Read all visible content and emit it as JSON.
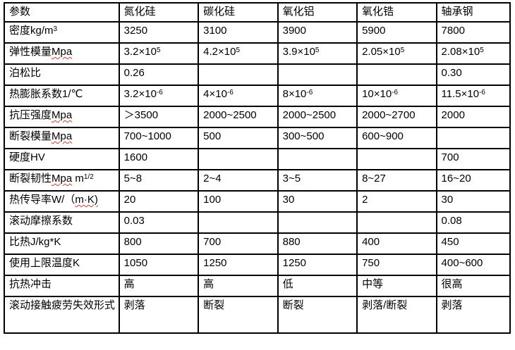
{
  "colors": {
    "background": "#ffffff",
    "text": "#000000",
    "border": "#000000",
    "spellcheck_squiggle": "#e0392e"
  },
  "chart_data": {
    "type": "table",
    "title": "",
    "columns": [
      "参数",
      "氮化硅",
      "碳化硅",
      "氧化铝",
      "氧化锆",
      "轴承钢"
    ],
    "rows": [
      [
        "密度kg/m³",
        "3250",
        "3100",
        "3900",
        "5900",
        "7800"
      ],
      [
        "弹性模量Mpa",
        "3.2×10⁵",
        "4.2×10⁵",
        "3.9×10⁵",
        "2.05×10⁵",
        "2.08×10⁵"
      ],
      [
        "泊松比",
        "0.26",
        "",
        "",
        "",
        "0.30"
      ],
      [
        "热膨胀系数1/℃",
        "3.2×10⁻⁶",
        "4×10⁻⁶",
        "8×10⁻⁶",
        "10×10⁻⁶",
        "11.5×10⁻⁶"
      ],
      [
        "抗压强度Mpa",
        "＞3500",
        "2000~2500",
        "2000~2500",
        "2000~2700",
        "2000"
      ],
      [
        "断裂模量Mpa",
        "700~1000",
        "500",
        "300~500",
        "600~900",
        ""
      ],
      [
        "硬度HV",
        "1600",
        "",
        "",
        "",
        "700"
      ],
      [
        "断裂韧性Mpa m¹/²",
        "5~8",
        "2~4",
        "3~5",
        "8~27",
        "16~20"
      ],
      [
        "热传导率W/（m·K)",
        "20",
        "100",
        "30",
        "2",
        "30"
      ],
      [
        "滚动摩擦系数",
        "0.03",
        "",
        "",
        "",
        "0.08"
      ],
      [
        "比热J/kg*K",
        "800",
        "700",
        "880",
        "400",
        "450"
      ],
      [
        "使用上限温度K",
        "1050",
        "1250",
        "1250",
        "750",
        "400~600"
      ],
      [
        "抗热冲击",
        "高",
        "高",
        "低",
        "中等",
        "很高"
      ],
      [
        "滚动接触疲劳失效形式",
        "剥落",
        "断裂",
        "断裂",
        "剥落/断裂",
        "剥落"
      ]
    ]
  },
  "table": {
    "columns": [
      "参数",
      "氮化硅",
      "碳化硅",
      "氧化铝",
      "氧化锆",
      "轴承钢"
    ],
    "rows": [
      {
        "label": [
          {
            "t": "密度kg/m"
          },
          {
            "t": "3",
            "sup": true
          }
        ],
        "values": [
          "3250",
          "3100",
          "3900",
          "5900",
          "7800"
        ]
      },
      {
        "label": [
          {
            "t": "弹性模量"
          },
          {
            "t": "Mpa",
            "squiggle": true
          }
        ],
        "values": [
          [
            {
              "t": "3.2×10"
            },
            {
              "t": "5",
              "sup": true
            }
          ],
          [
            {
              "t": "4.2×10"
            },
            {
              "t": "5",
              "sup": true
            }
          ],
          [
            {
              "t": "3.9×10"
            },
            {
              "t": "5",
              "sup": true
            }
          ],
          [
            {
              "t": "2.05×10"
            },
            {
              "t": "5",
              "sup": true
            }
          ],
          [
            {
              "t": "2.08×10"
            },
            {
              "t": "5",
              "sup": true
            }
          ]
        ]
      },
      {
        "label": "泊松比",
        "values": [
          "0.26",
          "",
          "",
          "",
          "0.30"
        ]
      },
      {
        "label": "热膨胀系数1/℃",
        "values": [
          [
            {
              "t": "3.2×10"
            },
            {
              "t": "-6",
              "sup": true
            }
          ],
          [
            {
              "t": "4×10"
            },
            {
              "t": "-6",
              "sup": true
            }
          ],
          [
            {
              "t": "8×10"
            },
            {
              "t": "-6",
              "sup": true
            }
          ],
          [
            {
              "t": "10×10"
            },
            {
              "t": "-6",
              "sup": true
            }
          ],
          [
            {
              "t": "11.5×10"
            },
            {
              "t": "-6",
              "sup": true
            }
          ]
        ]
      },
      {
        "label": [
          {
            "t": "抗压强度"
          },
          {
            "t": "Mpa",
            "squiggle": true
          }
        ],
        "values": [
          "＞3500",
          "2000~2500",
          "2000~2500",
          "2000~2700",
          "2000"
        ]
      },
      {
        "label": [
          {
            "t": "断裂模量"
          },
          {
            "t": "Mpa",
            "squiggle": true
          }
        ],
        "values": [
          "700~1000",
          "500",
          "300~500",
          "600~900",
          ""
        ]
      },
      {
        "label": "硬度HV",
        "values": [
          "1600",
          "",
          "",
          "",
          "700"
        ]
      },
      {
        "label": [
          {
            "t": "断裂韧性"
          },
          {
            "t": "Mpa",
            "squiggle": true
          },
          {
            "t": " m"
          },
          {
            "t": "1/2",
            "sup": true
          }
        ],
        "values": [
          "5~8",
          "2~4",
          "3~5",
          "8~27",
          "16~20"
        ]
      },
      {
        "label": [
          {
            "t": "热传导率W/（"
          },
          {
            "t": "m·K)",
            "squiggle": true
          }
        ],
        "values": [
          "20",
          "100",
          "30",
          "2",
          "30"
        ]
      },
      {
        "label": "滚动摩擦系数",
        "values": [
          "0.03",
          "",
          "",
          "",
          "0.08"
        ]
      },
      {
        "label": "比热J/kg*K",
        "values": [
          "800",
          "700",
          "880",
          "400",
          "450"
        ]
      },
      {
        "label": "使用上限温度K",
        "values": [
          "1050",
          "1250",
          "1250",
          "750",
          "400~600"
        ]
      },
      {
        "label": "抗热冲击",
        "values": [
          "高",
          "高",
          "低",
          "中等",
          "很高"
        ]
      },
      {
        "label": "滚动接触疲劳失效形式",
        "values": [
          "剥落",
          "断裂",
          "断裂",
          "剥落/断裂",
          "剥落"
        ]
      }
    ]
  }
}
